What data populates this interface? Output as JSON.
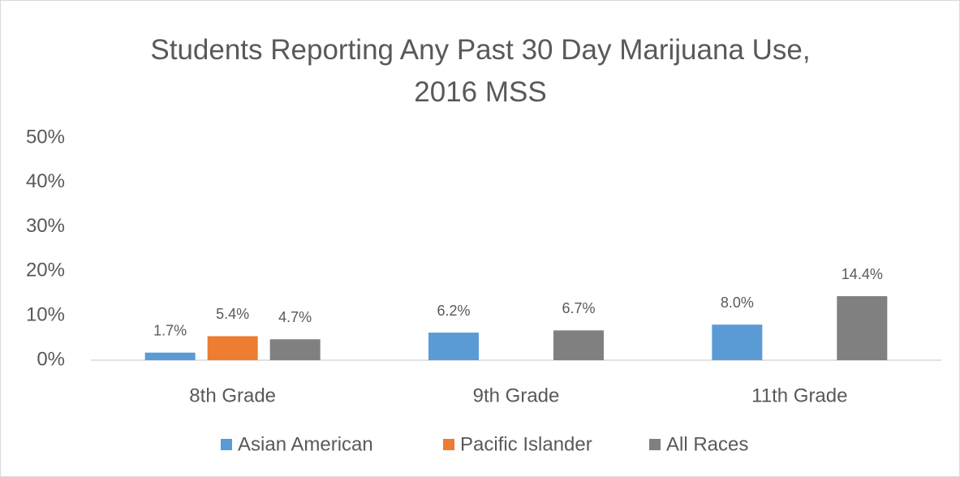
{
  "chart_data": {
    "type": "bar",
    "title": "Students Reporting Any Past 30 Day Marijuana Use, 2016 MSS",
    "categories": [
      "8th Grade",
      "9th Grade",
      "11th Grade"
    ],
    "series": [
      {
        "name": "Asian American",
        "color": "#5b9bd5",
        "values": [
          1.7,
          6.2,
          8.0
        ],
        "value_labels": [
          "1.7%",
          "6.2%",
          "8.0%"
        ]
      },
      {
        "name": "Pacific Islander",
        "color": "#ed7d31",
        "values": [
          5.4,
          null,
          null
        ],
        "value_labels": [
          "5.4%",
          null,
          null
        ]
      },
      {
        "name": "All Races",
        "color": "#808080",
        "values": [
          4.7,
          6.7,
          14.4
        ],
        "value_labels": [
          "4.7%",
          "6.7%",
          "14.4%"
        ]
      }
    ],
    "ylim": [
      0,
      50
    ],
    "yticks": [
      {
        "value": 0,
        "label": "0%"
      },
      {
        "value": 10,
        "label": "10%"
      },
      {
        "value": 20,
        "label": "20%"
      },
      {
        "value": 30,
        "label": "30%"
      },
      {
        "value": 40,
        "label": "40%"
      },
      {
        "value": 50,
        "label": "50%"
      }
    ],
    "grid": false,
    "legend": "bottom"
  }
}
